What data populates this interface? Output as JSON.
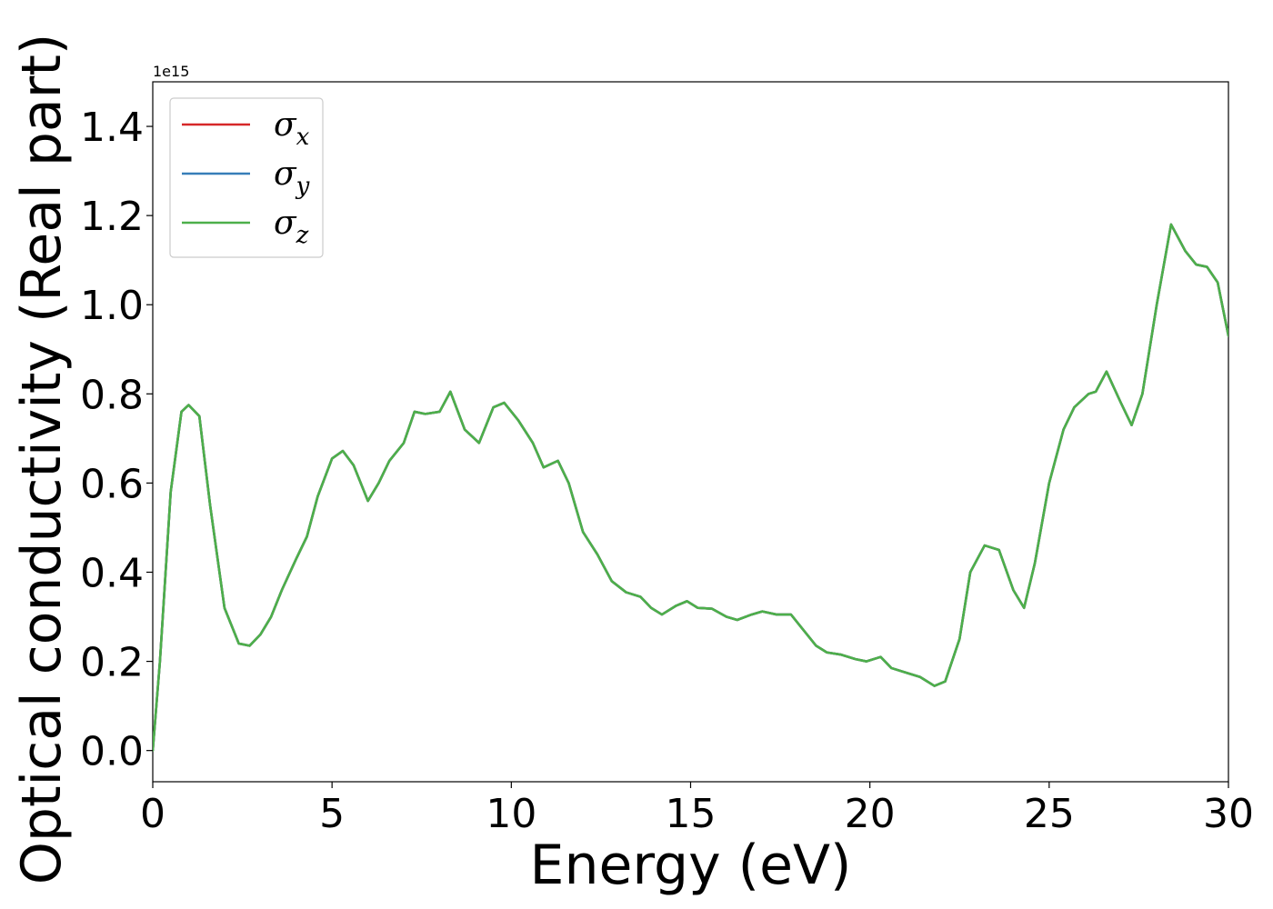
{
  "chart_data": {
    "type": "line",
    "xlabel": "Energy (eV)",
    "ylabel": "Optical conductivity (Real part)",
    "y_offset_label": "1e15",
    "xlim": [
      0,
      30
    ],
    "ylim": [
      -0.07,
      1.5
    ],
    "y_scale": 1000000000000000.0,
    "x_ticks": [
      0,
      5,
      10,
      15,
      20,
      25,
      30
    ],
    "x_tick_labels": [
      "0",
      "5",
      "10",
      "15",
      "20",
      "25",
      "30"
    ],
    "y_ticks": [
      0.0,
      0.2,
      0.4,
      0.6,
      0.8,
      1.0,
      1.2,
      1.4
    ],
    "y_tick_labels": [
      "0.0",
      "0.2",
      "0.4",
      "0.6",
      "0.8",
      "1.0",
      "1.2",
      "1.4"
    ],
    "grid": false,
    "legend_position": "upper-left",
    "x": [
      0,
      0.2,
      0.5,
      0.8,
      1.0,
      1.3,
      1.6,
      2.0,
      2.4,
      2.7,
      3.0,
      3.3,
      3.6,
      4.0,
      4.3,
      4.6,
      5.0,
      5.3,
      5.6,
      6.0,
      6.3,
      6.6,
      7.0,
      7.3,
      7.6,
      8.0,
      8.3,
      8.7,
      9.1,
      9.5,
      9.8,
      10.2,
      10.6,
      10.9,
      11.3,
      11.6,
      12.0,
      12.4,
      12.8,
      13.2,
      13.6,
      13.9,
      14.2,
      14.6,
      14.9,
      15.2,
      15.6,
      16.0,
      16.3,
      16.7,
      17.0,
      17.4,
      17.8,
      18.1,
      18.5,
      18.8,
      19.2,
      19.6,
      19.9,
      20.3,
      20.6,
      21.0,
      21.4,
      21.8,
      22.1,
      22.5,
      22.8,
      23.2,
      23.6,
      24.0,
      24.3,
      24.6,
      25.0,
      25.4,
      25.7,
      26.1,
      26.3,
      26.6,
      27.0,
      27.3,
      27.6,
      28.0,
      28.4,
      28.8,
      29.1,
      29.4,
      29.7,
      30.0
    ],
    "series": [
      {
        "name": "σ_x",
        "color": "#d62728",
        "values": [
          0.0,
          0.2,
          0.58,
          0.76,
          0.775,
          0.75,
          0.55,
          0.32,
          0.24,
          0.235,
          0.26,
          0.3,
          0.36,
          0.43,
          0.48,
          0.57,
          0.655,
          0.672,
          0.64,
          0.56,
          0.6,
          0.65,
          0.69,
          0.76,
          0.755,
          0.76,
          0.805,
          0.72,
          0.69,
          0.77,
          0.78,
          0.74,
          0.69,
          0.635,
          0.65,
          0.6,
          0.49,
          0.44,
          0.38,
          0.355,
          0.345,
          0.32,
          0.305,
          0.325,
          0.335,
          0.32,
          0.318,
          0.3,
          0.293,
          0.305,
          0.312,
          0.305,
          0.305,
          0.275,
          0.235,
          0.22,
          0.215,
          0.205,
          0.2,
          0.21,
          0.185,
          0.175,
          0.165,
          0.145,
          0.155,
          0.25,
          0.4,
          0.46,
          0.45,
          0.36,
          0.32,
          0.42,
          0.6,
          0.72,
          0.77,
          0.8,
          0.805,
          0.85,
          0.78,
          0.73,
          0.8,
          1.0,
          1.18,
          1.12,
          1.09,
          1.085,
          1.05,
          0.93
        ]
      },
      {
        "name": "σ_y",
        "color": "#377eb8",
        "values": [
          0.0,
          0.2,
          0.58,
          0.76,
          0.775,
          0.75,
          0.55,
          0.32,
          0.24,
          0.235,
          0.26,
          0.3,
          0.36,
          0.43,
          0.48,
          0.57,
          0.655,
          0.672,
          0.64,
          0.56,
          0.6,
          0.65,
          0.69,
          0.76,
          0.755,
          0.76,
          0.805,
          0.72,
          0.69,
          0.77,
          0.78,
          0.74,
          0.69,
          0.635,
          0.65,
          0.6,
          0.49,
          0.44,
          0.38,
          0.355,
          0.345,
          0.32,
          0.305,
          0.325,
          0.335,
          0.32,
          0.318,
          0.3,
          0.293,
          0.305,
          0.312,
          0.305,
          0.305,
          0.275,
          0.235,
          0.22,
          0.215,
          0.205,
          0.2,
          0.21,
          0.185,
          0.175,
          0.165,
          0.145,
          0.155,
          0.25,
          0.4,
          0.46,
          0.45,
          0.36,
          0.32,
          0.42,
          0.6,
          0.72,
          0.77,
          0.8,
          0.805,
          0.85,
          0.78,
          0.73,
          0.8,
          1.0,
          1.18,
          1.12,
          1.09,
          1.085,
          1.05,
          0.93
        ]
      },
      {
        "name": "σ_z",
        "color": "#4daf4a",
        "values": [
          0.0,
          0.2,
          0.58,
          0.76,
          0.775,
          0.75,
          0.55,
          0.32,
          0.24,
          0.235,
          0.26,
          0.3,
          0.36,
          0.43,
          0.48,
          0.57,
          0.655,
          0.672,
          0.64,
          0.56,
          0.6,
          0.65,
          0.69,
          0.76,
          0.755,
          0.76,
          0.805,
          0.72,
          0.69,
          0.77,
          0.78,
          0.74,
          0.69,
          0.635,
          0.65,
          0.6,
          0.49,
          0.44,
          0.38,
          0.355,
          0.345,
          0.32,
          0.305,
          0.325,
          0.335,
          0.32,
          0.318,
          0.3,
          0.293,
          0.305,
          0.312,
          0.305,
          0.305,
          0.275,
          0.235,
          0.22,
          0.215,
          0.205,
          0.2,
          0.21,
          0.185,
          0.175,
          0.165,
          0.145,
          0.155,
          0.25,
          0.4,
          0.46,
          0.45,
          0.36,
          0.32,
          0.42,
          0.6,
          0.72,
          0.77,
          0.8,
          0.805,
          0.85,
          0.78,
          0.73,
          0.8,
          1.0,
          1.18,
          1.12,
          1.09,
          1.085,
          1.05,
          0.93
        ]
      }
    ],
    "legend": [
      {
        "symbol": "σ",
        "subscript": "x",
        "color": "#d62728"
      },
      {
        "symbol": "σ",
        "subscript": "y",
        "color": "#377eb8"
      },
      {
        "symbol": "σ",
        "subscript": "z",
        "color": "#4daf4a"
      }
    ]
  }
}
